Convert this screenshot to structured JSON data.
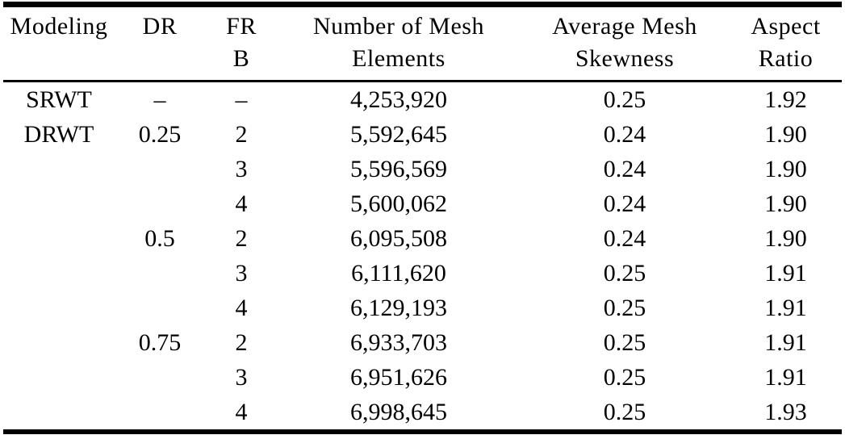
{
  "table": {
    "header": {
      "columns": [
        {
          "line1": "Modeling",
          "line2": ""
        },
        {
          "line1": "DR",
          "line2": ""
        },
        {
          "line1": "FR",
          "line2": "B"
        },
        {
          "line1": "Number of Mesh",
          "line2": "Elements"
        },
        {
          "line1": "Average Mesh",
          "line2": "Skewness"
        },
        {
          "line1": "Aspect",
          "line2": "Ratio"
        }
      ]
    },
    "rows": [
      [
        "SRWT",
        "–",
        "–",
        "4,253,920",
        "0.25",
        "1.92"
      ],
      [
        "DRWT",
        "0.25",
        "2",
        "5,592,645",
        "0.24",
        "1.90"
      ],
      [
        "",
        "",
        "3",
        "5,596,569",
        "0.24",
        "1.90"
      ],
      [
        "",
        "",
        "4",
        "5,600,062",
        "0.24",
        "1.90"
      ],
      [
        "",
        "0.5",
        "2",
        "6,095,508",
        "0.24",
        "1.90"
      ],
      [
        "",
        "",
        "3",
        "6,111,620",
        "0.25",
        "1.91"
      ],
      [
        "",
        "",
        "4",
        "6,129,193",
        "0.25",
        "1.91"
      ],
      [
        "",
        "0.75",
        "2",
        "6,933,703",
        "0.25",
        "1.91"
      ],
      [
        "",
        "",
        "3",
        "6,951,626",
        "0.25",
        "1.91"
      ],
      [
        "",
        "",
        "4",
        "6,998,645",
        "0.25",
        "1.93"
      ]
    ]
  },
  "colors": {
    "text": "#000000",
    "background": "#ffffff",
    "rule": "#000000"
  }
}
